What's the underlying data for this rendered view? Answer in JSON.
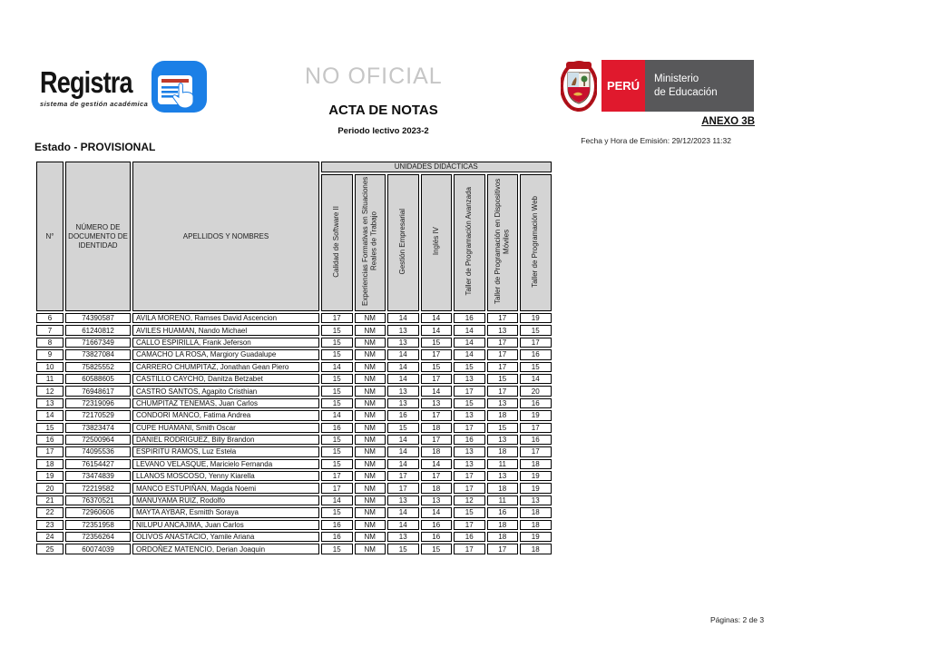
{
  "brand": {
    "name": "Registra",
    "tagline": "sistema de gestión académica",
    "blue": "#1b7fe6"
  },
  "watermark": "NO OFICIAL",
  "doc_header": {
    "title": "ACTA DE NOTAS",
    "subtitle": "Periodo lectivo 2023-2",
    "annex": "ANEXO 3B",
    "emission": "Fecha y Hora de Emisión: 29/12/2023 11:32"
  },
  "gov": {
    "country": "PERÚ",
    "ministry": [
      "Ministerio",
      "de Educación"
    ],
    "red": "#e0192d",
    "gray": "#58585a"
  },
  "status": "Estado - PROVISIONAL",
  "table": {
    "headers": {
      "index": "N°",
      "document": "NÚMERO DE DOCUMENTO DE IDENTIDAD",
      "names": "APELLIDOS Y NOMBRES",
      "units_band": "UNIDADES DIDÁCTICAS"
    },
    "unit_columns": [
      "Calidad de Software II",
      "Experiencias Formativas en Situaciones Reales de Trabajo",
      "Gestión Empresarial",
      "Inglés IV",
      "Taller de Programación Avanzada",
      "Taller de Programación en Dispositivos Móviles",
      "Taller de Programación Web"
    ],
    "rows": [
      {
        "n": "6",
        "doc": "74390587",
        "name": "AVILA MORENO, Ramses David Ascencion",
        "grades": [
          "17",
          "NM",
          "14",
          "14",
          "16",
          "17",
          "19"
        ]
      },
      {
        "n": "7",
        "doc": "61240812",
        "name": "AVILES HUAMAN, Nando Michael",
        "grades": [
          "15",
          "NM",
          "13",
          "14",
          "14",
          "13",
          "15"
        ]
      },
      {
        "n": "8",
        "doc": "71667349",
        "name": "CALLO ESPIRILLA, Frank Jeferson",
        "grades": [
          "15",
          "NM",
          "13",
          "15",
          "14",
          "17",
          "17"
        ]
      },
      {
        "n": "9",
        "doc": "73827084",
        "name": "CAMACHO LA ROSA, Margiory Guadalupe",
        "grades": [
          "15",
          "NM",
          "14",
          "17",
          "14",
          "17",
          "16"
        ]
      },
      {
        "n": "10",
        "doc": "75825552",
        "name": "CARRERO CHUMPITAZ, Jonathan Gean Piero",
        "grades": [
          "14",
          "NM",
          "14",
          "15",
          "15",
          "17",
          "15"
        ]
      },
      {
        "n": "11",
        "doc": "60588605",
        "name": "CASTILLO CAYCHO, Danitza Betzabet",
        "grades": [
          "15",
          "NM",
          "14",
          "17",
          "13",
          "15",
          "14"
        ]
      },
      {
        "n": "12",
        "doc": "76948617",
        "name": "CASTRO SANTOS, Agapito Cristhian",
        "grades": [
          "15",
          "NM",
          "13",
          "14",
          "17",
          "17",
          "20"
        ]
      },
      {
        "n": "13",
        "doc": "72319096",
        "name": "CHUMPITAZ TENEMAS, Juan Carlos",
        "grades": [
          "15",
          "NM",
          "13",
          "13",
          "15",
          "13",
          "16"
        ]
      },
      {
        "n": "14",
        "doc": "72170529",
        "name": "CONDORI MANCO, Fatima Andrea",
        "grades": [
          "14",
          "NM",
          "16",
          "17",
          "13",
          "18",
          "19"
        ]
      },
      {
        "n": "15",
        "doc": "73823474",
        "name": "CUPE HUAMANI, Smith Oscar",
        "grades": [
          "16",
          "NM",
          "15",
          "18",
          "17",
          "15",
          "17"
        ]
      },
      {
        "n": "16",
        "doc": "72500964",
        "name": "DANIEL RODRIGUEZ, Billy Brandon",
        "grades": [
          "15",
          "NM",
          "14",
          "17",
          "16",
          "13",
          "16"
        ]
      },
      {
        "n": "17",
        "doc": "74095536",
        "name": "ESPIRITU RAMOS, Luz Estela",
        "grades": [
          "15",
          "NM",
          "14",
          "18",
          "13",
          "18",
          "17"
        ]
      },
      {
        "n": "18",
        "doc": "76154427",
        "name": "LEVANO VELASQUE, Maricielo Fernanda",
        "grades": [
          "15",
          "NM",
          "14",
          "14",
          "13",
          "11",
          "18"
        ]
      },
      {
        "n": "19",
        "doc": "73474839",
        "name": "LLANOS MOSCOSO, Yenny Kiarella",
        "grades": [
          "17",
          "NM",
          "17",
          "17",
          "17",
          "13",
          "19"
        ]
      },
      {
        "n": "20",
        "doc": "72219582",
        "name": "MANCO ESTUPIÑAN, Magda Noemi",
        "grades": [
          "17",
          "NM",
          "17",
          "18",
          "17",
          "18",
          "19"
        ]
      },
      {
        "n": "21",
        "doc": "76370521",
        "name": "MANUYAMA RUIZ, Rodolfo",
        "grades": [
          "14",
          "NM",
          "13",
          "13",
          "12",
          "11",
          "13"
        ]
      },
      {
        "n": "22",
        "doc": "72960606",
        "name": "MAYTA AYBAR, Esmitth Soraya",
        "grades": [
          "15",
          "NM",
          "14",
          "14",
          "15",
          "16",
          "18"
        ]
      },
      {
        "n": "23",
        "doc": "72351958",
        "name": "NILUPU ANCAJIMA, Juan Carlos",
        "grades": [
          "16",
          "NM",
          "14",
          "16",
          "17",
          "18",
          "18"
        ]
      },
      {
        "n": "24",
        "doc": "72356264",
        "name": "OLIVOS ANASTACIO, Yamile Ariana",
        "grades": [
          "16",
          "NM",
          "13",
          "16",
          "16",
          "18",
          "19"
        ]
      },
      {
        "n": "25",
        "doc": "60074039",
        "name": "ORDOÑEZ MATENCIO, Derian Joaquin",
        "grades": [
          "15",
          "NM",
          "15",
          "15",
          "17",
          "17",
          "18"
        ]
      }
    ]
  },
  "footer": {
    "pages": "Páginas: 2 de 3"
  },
  "colors": {
    "header_cell": "#d4d4d4",
    "border": "#000000",
    "watermark": "#c6c6c6"
  }
}
